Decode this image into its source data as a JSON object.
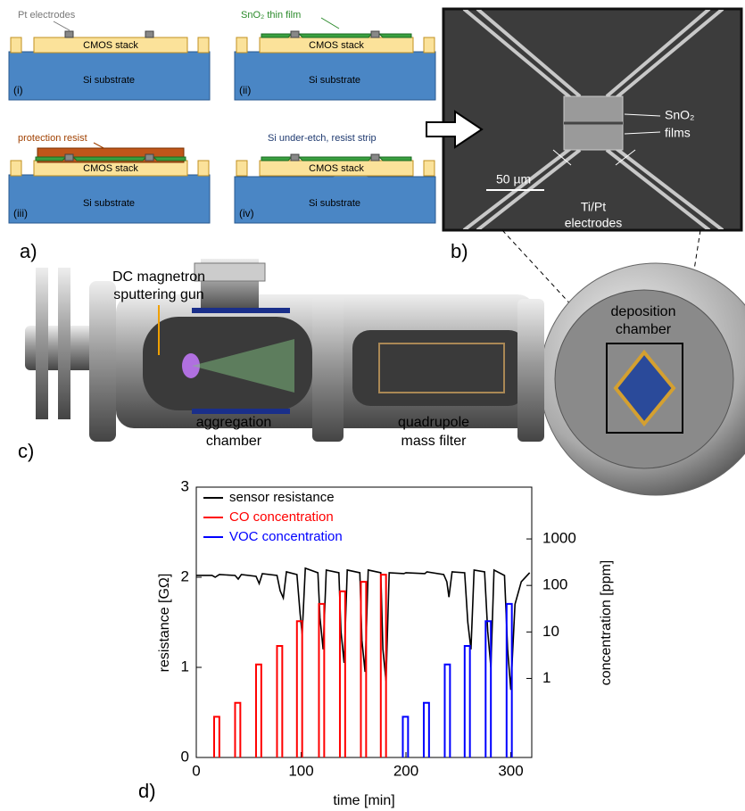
{
  "panel_a": {
    "label": "a)",
    "steps": [
      {
        "label": "(i)",
        "stack": "CMOS stack",
        "substrate": "Si substrate"
      },
      {
        "label": "(ii)",
        "stack": "CMOS stack",
        "substrate": "Si substrate"
      },
      {
        "label": "(iii)",
        "stack": "CMOS stack",
        "substrate": "Si substrate"
      },
      {
        "label": "(iv)",
        "stack": "CMOS stack",
        "substrate": "Si substrate"
      }
    ],
    "annotations": {
      "electrodes": "Pt electrodes",
      "film": "SnO₂ thin film",
      "resist": "protection resist",
      "etch": "Si under-etch, resist strip"
    }
  },
  "panel_b": {
    "label": "b)",
    "films": [
      "SnO₂",
      "films"
    ],
    "scale": "50 µm",
    "electrodes": [
      "Ti/Pt",
      "electrodes"
    ]
  },
  "panel_c": {
    "label": "c)",
    "gun": [
      "DC magnetron",
      "sputtering gun"
    ],
    "deposition": [
      "deposition",
      "chamber"
    ],
    "aggregation": [
      "aggregation",
      "chamber"
    ],
    "filter": [
      "quadrupole",
      "mass filter"
    ]
  },
  "chart_data": {
    "type": "line",
    "panel_label": "d)",
    "x_label": "time [min]",
    "y_label": "resistance [GΩ]",
    "y2_label": "concentration [ppm]",
    "xlim": [
      0,
      320
    ],
    "xticks": [
      0,
      100,
      200,
      300
    ],
    "ylim": [
      0,
      3
    ],
    "yticks": [
      0,
      1,
      2,
      3
    ],
    "y2scale": "log",
    "y2lim": [
      0.02,
      13000
    ],
    "y2ticks": [
      1,
      10,
      100,
      1000
    ],
    "series": [
      {
        "name": "sensor resistance",
        "color": "#000000",
        "x": [
          0,
          15,
          18,
          22,
          37,
          40,
          43,
          57,
          60,
          63,
          77,
          80,
          83,
          86,
          96,
          99,
          101,
          104,
          116,
          118,
          121,
          124,
          136,
          138,
          141,
          144,
          156,
          158,
          161,
          164,
          176,
          178,
          181,
          184,
          198,
          200,
          218,
          220,
          236,
          239,
          241,
          244,
          256,
          259,
          262,
          265,
          275,
          278,
          281,
          284,
          294,
          297,
          300,
          304,
          310,
          318
        ],
        "values": [
          2.02,
          2.02,
          2.0,
          2.03,
          2.02,
          1.98,
          2.03,
          2.01,
          1.93,
          2.04,
          2.02,
          1.85,
          1.77,
          2.06,
          2.03,
          1.6,
          1.37,
          2.1,
          2.05,
          1.55,
          1.2,
          2.08,
          2.05,
          1.4,
          1.05,
          2.08,
          2.05,
          1.3,
          0.95,
          2.08,
          2.05,
          1.2,
          0.85,
          2.05,
          2.04,
          2.05,
          2.04,
          2.06,
          2.03,
          1.95,
          1.78,
          2.06,
          2.05,
          1.5,
          1.2,
          2.08,
          2.06,
          1.4,
          1.0,
          2.08,
          2.02,
          1.2,
          0.75,
          1.7,
          1.95,
          2.05
        ]
      },
      {
        "name": "CO concentration",
        "color": "#ff0000",
        "axis": "y2",
        "x": [
          17,
          37,
          57,
          77,
          96,
          117,
          137,
          157,
          176
        ],
        "x_end": [
          22,
          42,
          62,
          82,
          101,
          122,
          142,
          162,
          181
        ],
        "values": [
          0.15,
          0.3,
          2,
          5,
          17,
          40,
          75,
          120,
          170
        ]
      },
      {
        "name": "VOC concentration",
        "color": "#0000ff",
        "axis": "y2",
        "x": [
          197,
          217,
          237,
          256,
          276,
          296
        ],
        "x_end": [
          202,
          222,
          242,
          261,
          281,
          301
        ],
        "values": [
          0.15,
          0.3,
          2,
          5,
          17,
          40
        ]
      }
    ]
  }
}
